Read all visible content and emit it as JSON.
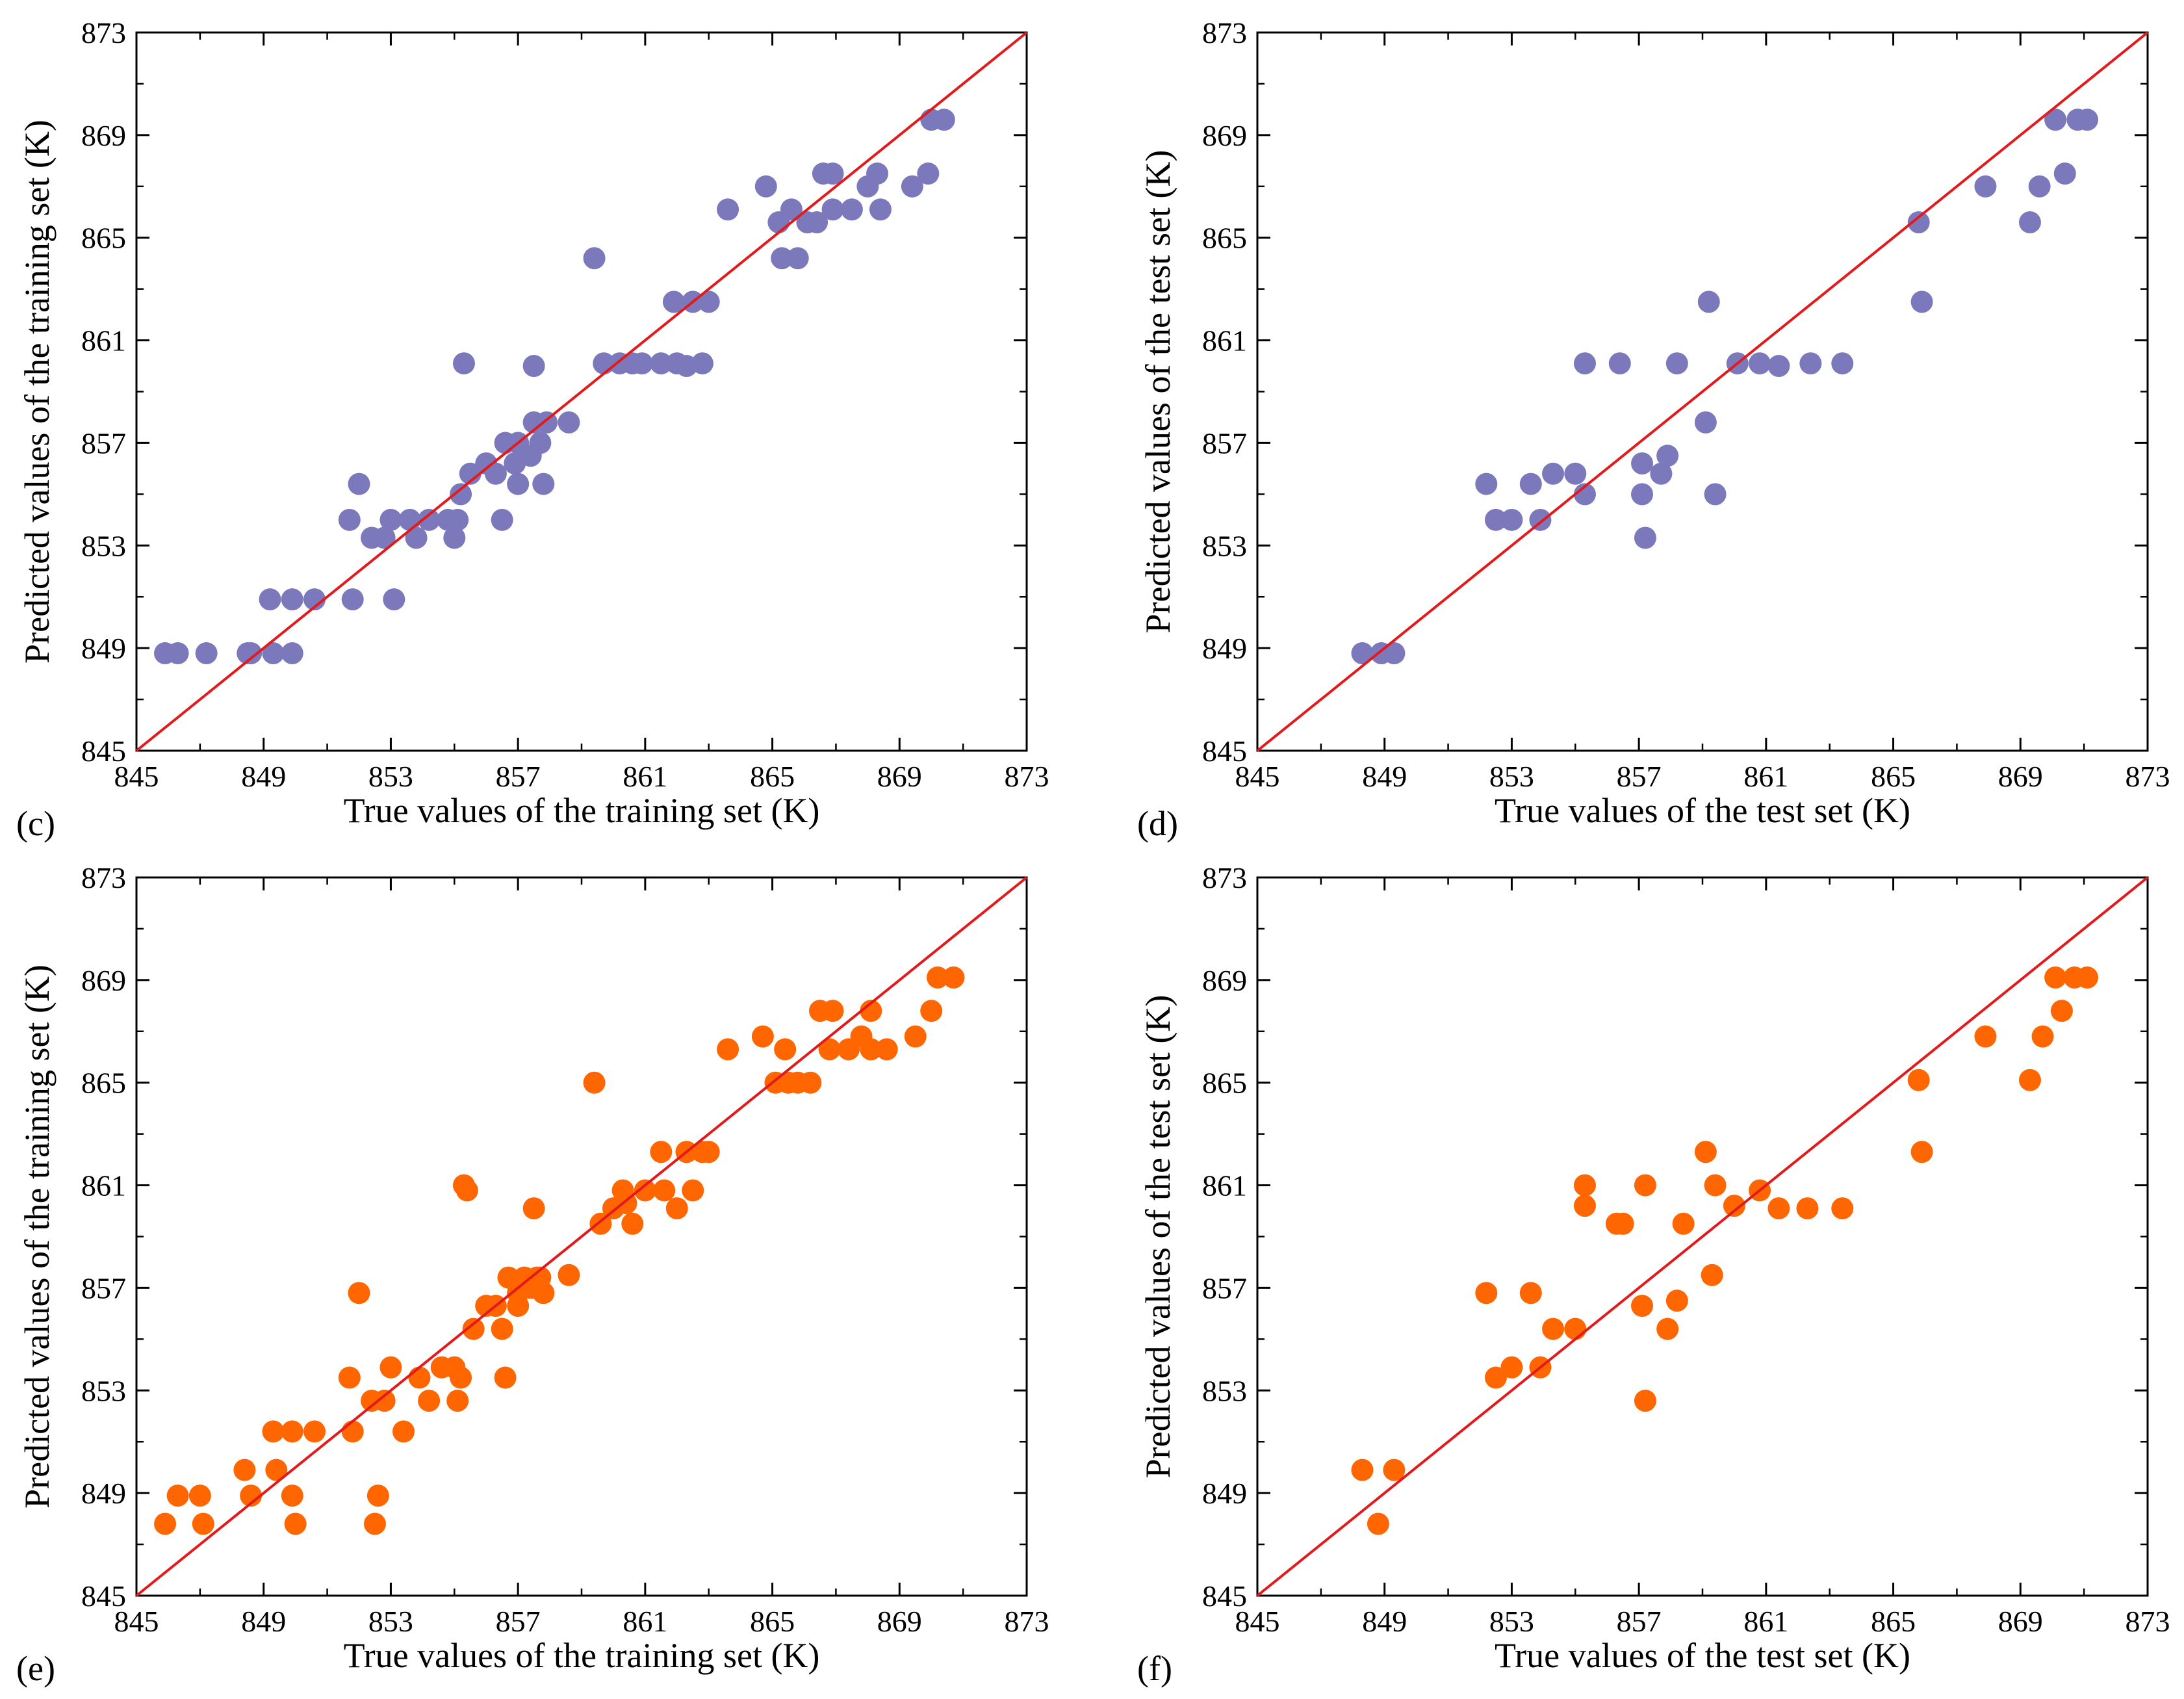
{
  "colors": {
    "purple": "#7b79bb",
    "orange": "#ff6600",
    "diagonal": "#e31a1c",
    "axis": "#000000"
  },
  "chart_data": [
    {
      "type": "scatter",
      "panel": "(c)",
      "xlabel": "True values of the training set (K)",
      "ylabel": "Predicted values of the training set (K)",
      "xlim": [
        845,
        873
      ],
      "ylim": [
        845,
        873
      ],
      "ticks": [
        "845",
        "849",
        "853",
        "857",
        "861",
        "865",
        "869",
        "873"
      ],
      "marker_color": "purple",
      "reference_line": "y = x",
      "points": [
        [
          845.9,
          848.8
        ],
        [
          846.3,
          848.8
        ],
        [
          847.2,
          848.8
        ],
        [
          848.5,
          848.8
        ],
        [
          848.6,
          848.8
        ],
        [
          849.3,
          848.8
        ],
        [
          849.9,
          848.8
        ],
        [
          849.2,
          850.9
        ],
        [
          849.9,
          850.9
        ],
        [
          850.6,
          850.9
        ],
        [
          851.8,
          850.9
        ],
        [
          853.1,
          850.9
        ],
        [
          851.7,
          854.0
        ],
        [
          852.0,
          855.4
        ],
        [
          852.4,
          853.3
        ],
        [
          852.8,
          853.3
        ],
        [
          853.0,
          854.0
        ],
        [
          853.6,
          854.0
        ],
        [
          853.8,
          853.3
        ],
        [
          854.2,
          854.0
        ],
        [
          854.8,
          854.0
        ],
        [
          855.1,
          854.0
        ],
        [
          855.0,
          853.3
        ],
        [
          855.2,
          855.0
        ],
        [
          855.5,
          855.8
        ],
        [
          856.0,
          856.2
        ],
        [
          856.5,
          854.0
        ],
        [
          856.3,
          855.8
        ],
        [
          855.3,
          860.1
        ],
        [
          856.6,
          857.0
        ],
        [
          857.0,
          857.0
        ],
        [
          856.9,
          856.2
        ],
        [
          857.0,
          855.4
        ],
        [
          857.4,
          856.5
        ],
        [
          857.5,
          857.8
        ],
        [
          857.7,
          857.0
        ],
        [
          857.8,
          855.4
        ],
        [
          857.9,
          857.8
        ],
        [
          858.6,
          857.8
        ],
        [
          857.5,
          860.0
        ],
        [
          859.4,
          864.2
        ],
        [
          859.7,
          860.1
        ],
        [
          860.2,
          860.1
        ],
        [
          860.6,
          860.1
        ],
        [
          860.9,
          860.1
        ],
        [
          861.5,
          860.1
        ],
        [
          862.0,
          860.1
        ],
        [
          862.3,
          860.0
        ],
        [
          862.8,
          860.1
        ],
        [
          861.9,
          862.5
        ],
        [
          862.5,
          862.5
        ],
        [
          863.0,
          862.5
        ],
        [
          863.6,
          866.1
        ],
        [
          864.8,
          867.0
        ],
        [
          865.2,
          865.6
        ],
        [
          865.3,
          864.2
        ],
        [
          865.6,
          866.1
        ],
        [
          865.8,
          864.2
        ],
        [
          866.1,
          865.6
        ],
        [
          866.4,
          865.6
        ],
        [
          866.6,
          867.5
        ],
        [
          866.9,
          866.1
        ],
        [
          866.9,
          867.5
        ],
        [
          867.5,
          866.1
        ],
        [
          868.0,
          867.0
        ],
        [
          868.3,
          867.5
        ],
        [
          868.4,
          866.1
        ],
        [
          869.4,
          867.0
        ],
        [
          869.9,
          867.5
        ],
        [
          870.0,
          869.6
        ],
        [
          870.4,
          869.6
        ]
      ]
    },
    {
      "type": "scatter",
      "panel": "(d)",
      "xlabel": "True values of the test set (K)",
      "ylabel": "Predicted values of the test set (K)",
      "xlim": [
        845,
        873
      ],
      "ylim": [
        845,
        873
      ],
      "ticks": [
        "845",
        "849",
        "853",
        "857",
        "861",
        "865",
        "869",
        "873"
      ],
      "marker_color": "purple",
      "reference_line": "y = x",
      "points": [
        [
          848.3,
          848.8
        ],
        [
          848.9,
          848.8
        ],
        [
          849.3,
          848.8
        ],
        [
          852.2,
          855.4
        ],
        [
          852.5,
          854.0
        ],
        [
          853.0,
          854.0
        ],
        [
          853.6,
          855.4
        ],
        [
          853.9,
          854.0
        ],
        [
          854.3,
          855.8
        ],
        [
          855.0,
          855.8
        ],
        [
          855.3,
          855.0
        ],
        [
          855.3,
          860.1
        ],
        [
          856.4,
          860.1
        ],
        [
          857.1,
          856.2
        ],
        [
          857.1,
          855.0
        ],
        [
          857.2,
          853.3
        ],
        [
          857.7,
          855.8
        ],
        [
          857.9,
          856.5
        ],
        [
          858.2,
          860.1
        ],
        [
          859.1,
          857.8
        ],
        [
          859.2,
          862.5
        ],
        [
          859.4,
          855.0
        ],
        [
          860.1,
          860.1
        ],
        [
          860.8,
          860.1
        ],
        [
          861.4,
          860.0
        ],
        [
          862.4,
          860.1
        ],
        [
          863.4,
          860.1
        ],
        [
          865.8,
          865.6
        ],
        [
          865.9,
          862.5
        ],
        [
          867.9,
          867.0
        ],
        [
          869.3,
          865.6
        ],
        [
          869.6,
          867.0
        ],
        [
          870.1,
          869.6
        ],
        [
          870.4,
          867.5
        ],
        [
          870.8,
          869.6
        ],
        [
          871.1,
          869.6
        ]
      ]
    },
    {
      "type": "scatter",
      "panel": "(e)",
      "xlabel": "True values of the training set (K)",
      "ylabel": "Predicted values of the training set (K)",
      "xlim": [
        845,
        873
      ],
      "ylim": [
        845,
        873
      ],
      "ticks": [
        "845",
        "849",
        "853",
        "857",
        "861",
        "865",
        "869",
        "873"
      ],
      "marker_color": "orange",
      "reference_line": "y = x",
      "points": [
        [
          845.9,
          847.8
        ],
        [
          846.3,
          848.9
        ],
        [
          847.0,
          848.9
        ],
        [
          847.1,
          847.8
        ],
        [
          848.4,
          849.9
        ],
        [
          848.6,
          848.9
        ],
        [
          849.3,
          851.4
        ],
        [
          849.4,
          849.9
        ],
        [
          849.9,
          851.4
        ],
        [
          849.9,
          848.9
        ],
        [
          850.0,
          847.8
        ],
        [
          850.6,
          851.4
        ],
        [
          851.7,
          853.5
        ],
        [
          851.8,
          851.4
        ],
        [
          852.0,
          856.8
        ],
        [
          852.4,
          852.6
        ],
        [
          852.5,
          847.8
        ],
        [
          852.6,
          848.9
        ],
        [
          852.8,
          852.6
        ],
        [
          853.0,
          853.9
        ],
        [
          853.4,
          851.4
        ],
        [
          853.9,
          853.5
        ],
        [
          854.2,
          852.6
        ],
        [
          854.6,
          853.9
        ],
        [
          855.0,
          853.9
        ],
        [
          855.2,
          853.5
        ],
        [
          855.1,
          852.6
        ],
        [
          855.3,
          861.0
        ],
        [
          855.4,
          860.8
        ],
        [
          855.6,
          855.4
        ],
        [
          856.0,
          856.3
        ],
        [
          856.3,
          856.3
        ],
        [
          856.5,
          855.4
        ],
        [
          856.6,
          853.5
        ],
        [
          856.7,
          857.4
        ],
        [
          857.0,
          856.8
        ],
        [
          857.0,
          856.3
        ],
        [
          857.2,
          857.4
        ],
        [
          857.4,
          857.0
        ],
        [
          857.6,
          857.4
        ],
        [
          857.7,
          857.4
        ],
        [
          857.8,
          856.8
        ],
        [
          858.6,
          857.5
        ],
        [
          857.5,
          860.1
        ],
        [
          859.4,
          865.0
        ],
        [
          859.6,
          859.5
        ],
        [
          860.0,
          860.1
        ],
        [
          860.3,
          860.8
        ],
        [
          860.4,
          860.3
        ],
        [
          860.6,
          859.5
        ],
        [
          861.0,
          860.8
        ],
        [
          861.5,
          862.3
        ],
        [
          861.6,
          860.8
        ],
        [
          862.0,
          860.1
        ],
        [
          862.3,
          862.3
        ],
        [
          862.5,
          860.8
        ],
        [
          862.8,
          862.3
        ],
        [
          863.0,
          862.3
        ],
        [
          863.6,
          866.3
        ],
        [
          864.7,
          866.8
        ],
        [
          865.1,
          865.0
        ],
        [
          865.4,
          866.3
        ],
        [
          865.5,
          865.0
        ],
        [
          865.8,
          865.0
        ],
        [
          866.2,
          865.0
        ],
        [
          866.5,
          867.8
        ],
        [
          866.8,
          866.3
        ],
        [
          866.9,
          867.8
        ],
        [
          867.4,
          866.3
        ],
        [
          867.8,
          866.8
        ],
        [
          868.1,
          866.3
        ],
        [
          868.1,
          867.8
        ],
        [
          868.6,
          866.3
        ],
        [
          869.5,
          866.8
        ],
        [
          870.0,
          867.8
        ],
        [
          870.2,
          869.1
        ],
        [
          870.7,
          869.1
        ]
      ]
    },
    {
      "type": "scatter",
      "panel": "(f)",
      "xlabel": "True values of the test set (K)",
      "ylabel": "Predicted values of the test set (K)",
      "xlim": [
        845,
        873
      ],
      "ylim": [
        845,
        873
      ],
      "ticks": [
        "845",
        "849",
        "853",
        "857",
        "861",
        "865",
        "869",
        "873"
      ],
      "marker_color": "orange",
      "reference_line": "y = x",
      "points": [
        [
          848.3,
          849.9
        ],
        [
          848.8,
          847.8
        ],
        [
          849.3,
          849.9
        ],
        [
          852.2,
          856.8
        ],
        [
          852.5,
          853.5
        ],
        [
          853.0,
          853.9
        ],
        [
          853.6,
          856.8
        ],
        [
          853.9,
          853.9
        ],
        [
          854.3,
          855.4
        ],
        [
          855.0,
          855.4
        ],
        [
          855.3,
          861.0
        ],
        [
          855.3,
          860.2
        ],
        [
          856.3,
          859.5
        ],
        [
          856.5,
          859.5
        ],
        [
          857.1,
          856.3
        ],
        [
          857.2,
          861.0
        ],
        [
          857.2,
          852.6
        ],
        [
          857.9,
          855.4
        ],
        [
          858.2,
          856.5
        ],
        [
          858.4,
          859.5
        ],
        [
          859.1,
          862.3
        ],
        [
          859.3,
          857.5
        ],
        [
          859.4,
          861.0
        ],
        [
          860.0,
          860.2
        ],
        [
          860.8,
          860.8
        ],
        [
          861.4,
          860.1
        ],
        [
          862.3,
          860.1
        ],
        [
          863.4,
          860.1
        ],
        [
          865.8,
          865.1
        ],
        [
          865.9,
          862.3
        ],
        [
          867.9,
          866.8
        ],
        [
          869.3,
          865.1
        ],
        [
          869.7,
          866.8
        ],
        [
          870.1,
          869.1
        ],
        [
          870.3,
          867.8
        ],
        [
          870.7,
          869.1
        ],
        [
          871.1,
          869.1
        ]
      ]
    }
  ]
}
